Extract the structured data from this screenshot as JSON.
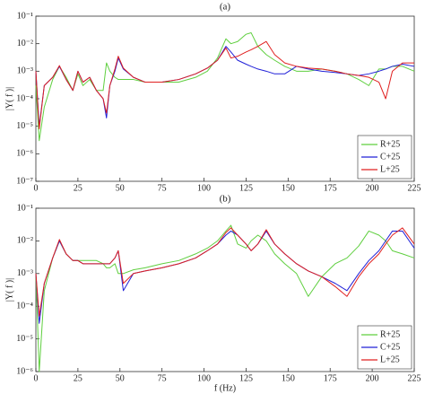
{
  "chart_data": [
    {
      "type": "line",
      "title": "(a)",
      "ylabel": "|Y( f )|",
      "yscale": "log",
      "grid": false,
      "legend": "lower right",
      "xlim": [
        0,
        225
      ],
      "xticks": [
        0,
        25,
        50,
        75,
        100,
        125,
        150,
        175,
        200,
        225
      ],
      "ylim": [
        1e-07,
        0.1
      ],
      "yticks": [
        {
          "value": 1e-07,
          "label": "10⁻⁷"
        },
        {
          "value": 1e-06,
          "label": "10⁻⁶"
        },
        {
          "value": 1e-05,
          "label": "10⁻⁵"
        },
        {
          "value": 0.0001,
          "label": "10⁻⁴"
        },
        {
          "value": 0.001,
          "label": "10⁻³"
        },
        {
          "value": 0.01,
          "label": "10⁻²"
        },
        {
          "value": 0.1,
          "label": "10⁻¹"
        }
      ],
      "x": [
        0,
        2,
        5,
        10,
        14,
        18,
        22,
        25,
        28,
        32,
        36,
        40,
        42,
        44,
        47,
        49,
        52,
        58,
        65,
        75,
        85,
        95,
        102,
        108,
        113,
        116,
        120,
        125,
        128,
        132,
        137,
        142,
        148,
        155,
        162,
        170,
        178,
        185,
        192,
        198,
        204,
        208,
        212,
        218,
        225
      ],
      "series": [
        {
          "name": "R+25",
          "color": "#5fcf3f",
          "values": [
            0.0003,
            3e-06,
            5e-05,
            0.0005,
            0.0015,
            0.0006,
            0.0002,
            0.0008,
            0.0003,
            0.0005,
            0.0002,
            0.0002,
            0.002,
            0.001,
            0.0006,
            0.0005,
            0.0005,
            0.0005,
            0.0004,
            0.0004,
            0.0004,
            0.0006,
            0.001,
            0.003,
            0.015,
            0.01,
            0.012,
            0.022,
            0.025,
            0.008,
            0.004,
            0.0025,
            0.0015,
            0.001,
            0.001,
            0.0012,
            0.001,
            0.0008,
            0.0005,
            0.0003,
            0.0012,
            0.0012,
            0.0015,
            0.0015,
            0.001
          ]
        },
        {
          "name": "C+25",
          "color": "#2020d8",
          "values": [
            0.001,
            1e-05,
            0.0003,
            0.0006,
            0.0015,
            0.0005,
            0.0002,
            0.001,
            0.0004,
            0.0006,
            0.0002,
            0.0001,
            2e-05,
            0.0003,
            0.001,
            0.003,
            0.0012,
            0.0006,
            0.0004,
            0.0004,
            0.0005,
            0.0008,
            0.0013,
            0.0025,
            0.008,
            0.005,
            0.0025,
            0.0018,
            0.0015,
            0.0012,
            0.001,
            0.0008,
            0.0008,
            0.0015,
            0.0012,
            0.001,
            0.0009,
            0.0008,
            0.0007,
            0.0008,
            0.001,
            0.0012,
            0.0015,
            0.0018,
            0.0015
          ]
        },
        {
          "name": "L+25",
          "color": "#e02020",
          "values": [
            0.001,
            8e-06,
            0.0003,
            0.0006,
            0.0016,
            0.0005,
            0.0002,
            0.001,
            0.0004,
            0.0006,
            0.0002,
            0.0001,
            3e-05,
            0.0003,
            0.0012,
            0.0035,
            0.0013,
            0.0006,
            0.0004,
            0.0004,
            0.0005,
            0.0008,
            0.0013,
            0.0025,
            0.007,
            0.003,
            0.0035,
            0.005,
            0.006,
            0.008,
            0.012,
            0.004,
            0.002,
            0.0015,
            0.0013,
            0.0012,
            0.001,
            0.0008,
            0.0007,
            0.0006,
            0.0004,
            0.0001,
            0.001,
            0.002,
            0.002
          ]
        }
      ]
    },
    {
      "type": "line",
      "title": "(b)",
      "ylabel": "|Y( f )|",
      "xlabel": "f (Hz)",
      "yscale": "log",
      "grid": false,
      "legend": "lower right",
      "xlim": [
        0,
        225
      ],
      "xticks": [
        0,
        25,
        50,
        75,
        100,
        125,
        150,
        175,
        200,
        225
      ],
      "ylim": [
        1e-06,
        0.1
      ],
      "yticks": [
        {
          "value": 1e-06,
          "label": "10⁻⁶"
        },
        {
          "value": 1e-05,
          "label": "10⁻⁵"
        },
        {
          "value": 0.0001,
          "label": "10⁻⁴"
        },
        {
          "value": 0.001,
          "label": "10⁻³"
        },
        {
          "value": 0.01,
          "label": "10⁻²"
        },
        {
          "value": 0.1,
          "label": "10⁻¹"
        }
      ],
      "x": [
        0,
        2,
        5,
        10,
        14,
        18,
        22,
        25,
        28,
        32,
        36,
        40,
        42,
        44,
        47,
        49,
        52,
        58,
        65,
        75,
        85,
        95,
        102,
        108,
        113,
        116,
        120,
        125,
        128,
        132,
        137,
        142,
        148,
        155,
        162,
        170,
        178,
        185,
        192,
        198,
        204,
        208,
        212,
        218,
        225
      ],
      "series": [
        {
          "name": "R+25",
          "color": "#5fcf3f",
          "values": [
            0.001,
            1e-06,
            0.0003,
            0.003,
            0.01,
            0.004,
            0.0025,
            0.0025,
            0.0025,
            0.0025,
            0.0025,
            0.002,
            0.0015,
            0.0015,
            0.002,
            0.001,
            0.001,
            0.0013,
            0.0015,
            0.002,
            0.0025,
            0.004,
            0.006,
            0.01,
            0.02,
            0.03,
            0.008,
            0.006,
            0.01,
            0.015,
            0.01,
            0.004,
            0.002,
            0.001,
            0.0002,
            0.0008,
            0.002,
            0.003,
            0.007,
            0.02,
            0.015,
            0.01,
            0.005,
            0.004,
            0.003
          ]
        },
        {
          "name": "C+25",
          "color": "#2020d8",
          "values": [
            0.001,
            3e-05,
            0.0005,
            0.003,
            0.01,
            0.004,
            0.0025,
            0.0025,
            0.002,
            0.002,
            0.002,
            0.002,
            0.002,
            0.002,
            0.003,
            0.005,
            0.0003,
            0.001,
            0.0012,
            0.0015,
            0.002,
            0.003,
            0.005,
            0.008,
            0.015,
            0.02,
            0.015,
            0.008,
            0.005,
            0.008,
            0.02,
            0.008,
            0.004,
            0.002,
            0.0012,
            0.0008,
            0.0005,
            0.0003,
            0.001,
            0.0025,
            0.005,
            0.01,
            0.02,
            0.02,
            0.006
          ]
        },
        {
          "name": "L+25",
          "color": "#e02020",
          "values": [
            0.001,
            5e-05,
            0.0005,
            0.003,
            0.011,
            0.004,
            0.0025,
            0.0025,
            0.002,
            0.002,
            0.002,
            0.002,
            0.002,
            0.002,
            0.003,
            0.005,
            0.0005,
            0.001,
            0.0012,
            0.0015,
            0.002,
            0.003,
            0.005,
            0.008,
            0.018,
            0.025,
            0.015,
            0.008,
            0.005,
            0.008,
            0.022,
            0.008,
            0.004,
            0.002,
            0.0012,
            0.0008,
            0.0004,
            0.0002,
            0.0008,
            0.002,
            0.004,
            0.008,
            0.015,
            0.025,
            0.008
          ]
        }
      ]
    }
  ]
}
